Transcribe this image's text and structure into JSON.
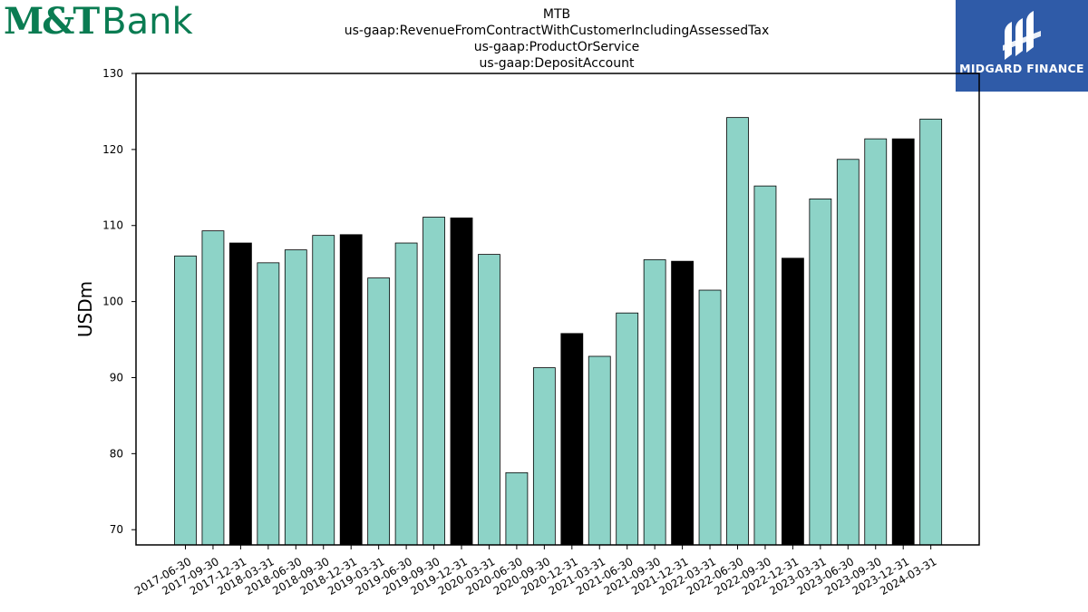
{
  "logo_left": {
    "mt": "M&T",
    "bank": "Bank"
  },
  "logo_right": {
    "label": "MIDGARD FINANCE"
  },
  "chart_data": {
    "type": "bar",
    "title_lines": [
      "MTB",
      "us-gaap:RevenueFromContractWithCustomerIncludingAssessedTax",
      "us-gaap:ProductOrService",
      "us-gaap:DepositAccount"
    ],
    "xlabel": "",
    "ylabel": "USDm",
    "ylim": [
      68,
      130
    ],
    "yticks": [
      70,
      80,
      90,
      100,
      110,
      120,
      130
    ],
    "grid": false,
    "colors": {
      "quarter": "#8dd3c7",
      "year_end": "#000000",
      "edge": "#000000"
    },
    "categories": [
      "2017-06-30",
      "2017-09-30",
      "2017-12-31",
      "2018-03-31",
      "2018-06-30",
      "2018-09-30",
      "2018-12-31",
      "2019-03-31",
      "2019-06-30",
      "2019-09-30",
      "2019-12-31",
      "2020-03-31",
      "2020-06-30",
      "2020-09-30",
      "2020-12-31",
      "2021-03-31",
      "2021-06-30",
      "2021-09-30",
      "2021-12-31",
      "2022-03-31",
      "2022-06-30",
      "2022-09-30",
      "2022-12-31",
      "2023-03-31",
      "2023-06-30",
      "2023-09-30",
      "2023-12-31",
      "2024-03-31"
    ],
    "values": [
      106.0,
      109.3,
      107.7,
      105.1,
      106.8,
      108.7,
      108.8,
      103.1,
      107.7,
      111.1,
      111.0,
      106.2,
      77.5,
      91.3,
      95.8,
      92.8,
      98.5,
      105.5,
      105.3,
      101.5,
      124.2,
      115.2,
      105.7,
      113.5,
      118.7,
      121.4,
      121.4,
      124.0
    ],
    "year_end": [
      false,
      false,
      true,
      false,
      false,
      false,
      true,
      false,
      false,
      false,
      true,
      false,
      false,
      false,
      true,
      false,
      false,
      false,
      true,
      false,
      false,
      false,
      true,
      false,
      false,
      false,
      true,
      false
    ]
  }
}
